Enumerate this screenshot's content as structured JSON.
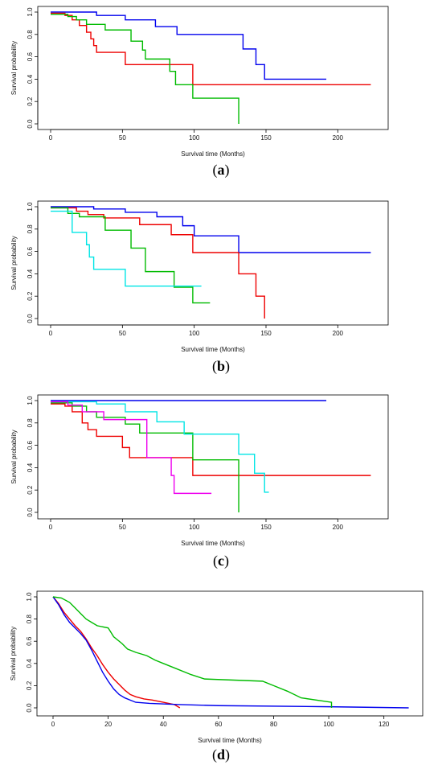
{
  "chart_data": [
    {
      "type": "line",
      "title": "",
      "xlabel": "Survival time (Months)",
      "ylabel": "Survival probability",
      "caption": {
        "letter": "a"
      },
      "xlim": [
        0,
        225
      ],
      "ylim": [
        0,
        1
      ],
      "x_ticks": [
        0,
        50,
        100,
        150,
        200
      ],
      "y_ticks": [
        0.0,
        0.2,
        0.4,
        0.6,
        0.8,
        1.0
      ],
      "x_tick_labels": [
        "0",
        "50",
        "100",
        "150",
        "200"
      ],
      "y_tick_labels": [
        "0.0",
        "0.2",
        "0.4",
        "0.6",
        "0.8",
        "1.0"
      ],
      "series": [
        {
          "color": "#0000ee",
          "steps": [
            [
              0,
              1.0
            ],
            [
              32,
              0.97
            ],
            [
              52,
              0.93
            ],
            [
              73,
              0.87
            ],
            [
              88,
              0.8
            ],
            [
              134,
              0.67
            ],
            [
              143,
              0.53
            ],
            [
              149,
              0.4
            ],
            [
              192,
              0.4
            ]
          ]
        },
        {
          "color": "#ee0000",
          "steps": [
            [
              0,
              0.99
            ],
            [
              10,
              0.97
            ],
            [
              15,
              0.93
            ],
            [
              20,
              0.88
            ],
            [
              25,
              0.82
            ],
            [
              28,
              0.76
            ],
            [
              30,
              0.7
            ],
            [
              32,
              0.64
            ],
            [
              52,
              0.53
            ],
            [
              99,
              0.35
            ],
            [
              223,
              0.35
            ]
          ]
        },
        {
          "color": "#00bb00",
          "steps": [
            [
              0,
              0.98
            ],
            [
              12,
              0.96
            ],
            [
              18,
              0.93
            ],
            [
              25,
              0.89
            ],
            [
              38,
              0.84
            ],
            [
              56,
              0.74
            ],
            [
              64,
              0.66
            ],
            [
              66,
              0.58
            ],
            [
              83,
              0.47
            ],
            [
              87,
              0.35
            ],
            [
              99,
              0.23
            ],
            [
              131,
              0.23
            ],
            [
              131,
              0.0
            ]
          ]
        }
      ]
    },
    {
      "type": "line",
      "title": "",
      "xlabel": "Survival time (Months)",
      "ylabel": "Survival probability",
      "caption": {
        "letter": "b"
      },
      "xlim": [
        0,
        225
      ],
      "ylim": [
        0,
        1
      ],
      "x_ticks": [
        0,
        50,
        100,
        150,
        200
      ],
      "y_ticks": [
        0.0,
        0.2,
        0.4,
        0.6,
        0.8,
        1.0
      ],
      "x_tick_labels": [
        "0",
        "50",
        "100",
        "150",
        "200"
      ],
      "y_tick_labels": [
        "0.0",
        "0.2",
        "0.4",
        "0.6",
        "0.8",
        "1.0"
      ],
      "series": [
        {
          "color": "#0000ee",
          "steps": [
            [
              0,
              1.0
            ],
            [
              30,
              0.98
            ],
            [
              52,
              0.95
            ],
            [
              74,
              0.91
            ],
            [
              92,
              0.83
            ],
            [
              100,
              0.74
            ],
            [
              131,
              0.59
            ],
            [
              223,
              0.59
            ]
          ]
        },
        {
          "color": "#ee0000",
          "steps": [
            [
              0,
              0.99
            ],
            [
              18,
              0.96
            ],
            [
              26,
              0.93
            ],
            [
              37,
              0.9
            ],
            [
              62,
              0.84
            ],
            [
              84,
              0.75
            ],
            [
              99,
              0.59
            ],
            [
              131,
              0.4
            ],
            [
              143,
              0.2
            ],
            [
              149,
              0.0
            ]
          ]
        },
        {
          "color": "#00bb00",
          "steps": [
            [
              0,
              0.99
            ],
            [
              12,
              0.94
            ],
            [
              20,
              0.91
            ],
            [
              38,
              0.79
            ],
            [
              56,
              0.63
            ],
            [
              66,
              0.42
            ],
            [
              86,
              0.28
            ],
            [
              99,
              0.14
            ],
            [
              111,
              0.14
            ]
          ]
        },
        {
          "color": "#00e5e5",
          "steps": [
            [
              0,
              0.96
            ],
            [
              15,
              0.77
            ],
            [
              25,
              0.66
            ],
            [
              27,
              0.55
            ],
            [
              30,
              0.44
            ],
            [
              52,
              0.29
            ],
            [
              105,
              0.29
            ]
          ]
        }
      ]
    },
    {
      "type": "line",
      "title": "",
      "xlabel": "Survival time (Months)",
      "ylabel": "Survival probability",
      "caption": {
        "letter": "c"
      },
      "xlim": [
        0,
        225
      ],
      "ylim": [
        0,
        1
      ],
      "x_ticks": [
        0,
        50,
        100,
        150,
        200
      ],
      "y_ticks": [
        0.0,
        0.2,
        0.4,
        0.6,
        0.8,
        1.0
      ],
      "x_tick_labels": [
        "0",
        "50",
        "100",
        "150",
        "200"
      ],
      "y_tick_labels": [
        "0.0",
        "0.2",
        "0.4",
        "0.6",
        "0.8",
        "1.0"
      ],
      "series": [
        {
          "color": "#0000ee",
          "steps": [
            [
              0,
              1.0
            ],
            [
              192,
              1.0
            ]
          ]
        },
        {
          "color": "#ee0000",
          "steps": [
            [
              0,
              0.97
            ],
            [
              10,
              0.95
            ],
            [
              15,
              0.9
            ],
            [
              22,
              0.8
            ],
            [
              26,
              0.74
            ],
            [
              32,
              0.68
            ],
            [
              50,
              0.58
            ],
            [
              55,
              0.49
            ],
            [
              99,
              0.33
            ],
            [
              223,
              0.33
            ]
          ]
        },
        {
          "color": "#00bb00",
          "steps": [
            [
              0,
              0.98
            ],
            [
              15,
              0.95
            ],
            [
              25,
              0.9
            ],
            [
              32,
              0.85
            ],
            [
              52,
              0.79
            ],
            [
              62,
              0.71
            ],
            [
              99,
              0.47
            ],
            [
              131,
              0.0
            ]
          ]
        },
        {
          "color": "#00e5e5",
          "steps": [
            [
              0,
              0.99
            ],
            [
              32,
              0.97
            ],
            [
              52,
              0.9
            ],
            [
              74,
              0.81
            ],
            [
              93,
              0.7
            ],
            [
              131,
              0.52
            ],
            [
              142,
              0.35
            ],
            [
              149,
              0.18
            ],
            [
              152,
              0.18
            ]
          ]
        },
        {
          "color": "#ee00ee",
          "steps": [
            [
              0,
              0.99
            ],
            [
              12,
              0.96
            ],
            [
              22,
              0.9
            ],
            [
              37,
              0.83
            ],
            [
              67,
              0.49
            ],
            [
              84,
              0.33
            ],
            [
              86,
              0.17
            ],
            [
              112,
              0.17
            ]
          ]
        }
      ]
    },
    {
      "type": "line",
      "title": "",
      "xlabel": "Survival time (Months)",
      "ylabel": "Survival probability",
      "caption": {
        "letter": "d"
      },
      "xlim": [
        0,
        130
      ],
      "ylim": [
        0,
        1
      ],
      "x_ticks": [
        0,
        20,
        40,
        60,
        80,
        100,
        120
      ],
      "y_ticks": [
        0.0,
        0.2,
        0.4,
        0.6,
        0.8,
        1.0
      ],
      "x_tick_labels": [
        "0",
        "20",
        "40",
        "60",
        "80",
        "100",
        "120"
      ],
      "y_tick_labels": [
        "0.0",
        "0.2",
        "0.4",
        "0.6",
        "0.8",
        "1.0"
      ],
      "series": [
        {
          "color": "#ee0000",
          "points": [
            [
              0,
              1.0
            ],
            [
              2,
              0.94
            ],
            [
              4,
              0.86
            ],
            [
              6,
              0.8
            ],
            [
              8,
              0.74
            ],
            [
              10,
              0.69
            ],
            [
              12,
              0.62
            ],
            [
              14,
              0.54
            ],
            [
              16,
              0.47
            ],
            [
              18,
              0.39
            ],
            [
              20,
              0.32
            ],
            [
              22,
              0.26
            ],
            [
              24,
              0.21
            ],
            [
              26,
              0.16
            ],
            [
              28,
              0.12
            ],
            [
              30,
              0.1
            ],
            [
              33,
              0.08
            ],
            [
              36,
              0.07
            ],
            [
              40,
              0.05
            ],
            [
              44,
              0.03
            ],
            [
              46,
              0.0
            ]
          ]
        },
        {
          "color": "#0000ee",
          "points": [
            [
              0,
              1.0
            ],
            [
              2,
              0.93
            ],
            [
              4,
              0.84
            ],
            [
              6,
              0.77
            ],
            [
              8,
              0.72
            ],
            [
              10,
              0.67
            ],
            [
              12,
              0.61
            ],
            [
              14,
              0.52
            ],
            [
              16,
              0.42
            ],
            [
              18,
              0.32
            ],
            [
              20,
              0.24
            ],
            [
              22,
              0.17
            ],
            [
              24,
              0.12
            ],
            [
              26,
              0.09
            ],
            [
              28,
              0.07
            ],
            [
              30,
              0.05
            ],
            [
              35,
              0.04
            ],
            [
              45,
              0.03
            ],
            [
              60,
              0.02
            ],
            [
              100,
              0.01
            ],
            [
              129,
              0.0
            ]
          ]
        },
        {
          "color": "#00bb00",
          "points": [
            [
              0,
              1.0
            ],
            [
              3,
              0.99
            ],
            [
              6,
              0.95
            ],
            [
              8,
              0.9
            ],
            [
              10,
              0.85
            ],
            [
              12,
              0.8
            ],
            [
              14,
              0.77
            ],
            [
              16,
              0.74
            ],
            [
              20,
              0.72
            ],
            [
              22,
              0.64
            ],
            [
              25,
              0.58
            ],
            [
              27,
              0.53
            ],
            [
              30,
              0.5
            ],
            [
              34,
              0.47
            ],
            [
              37,
              0.43
            ],
            [
              40,
              0.4
            ],
            [
              44,
              0.36
            ],
            [
              50,
              0.3
            ],
            [
              55,
              0.26
            ],
            [
              76,
              0.24
            ],
            [
              80,
              0.2
            ],
            [
              85,
              0.15
            ],
            [
              90,
              0.09
            ],
            [
              101,
              0.05
            ],
            [
              101,
              0.0
            ]
          ]
        }
      ]
    }
  ]
}
